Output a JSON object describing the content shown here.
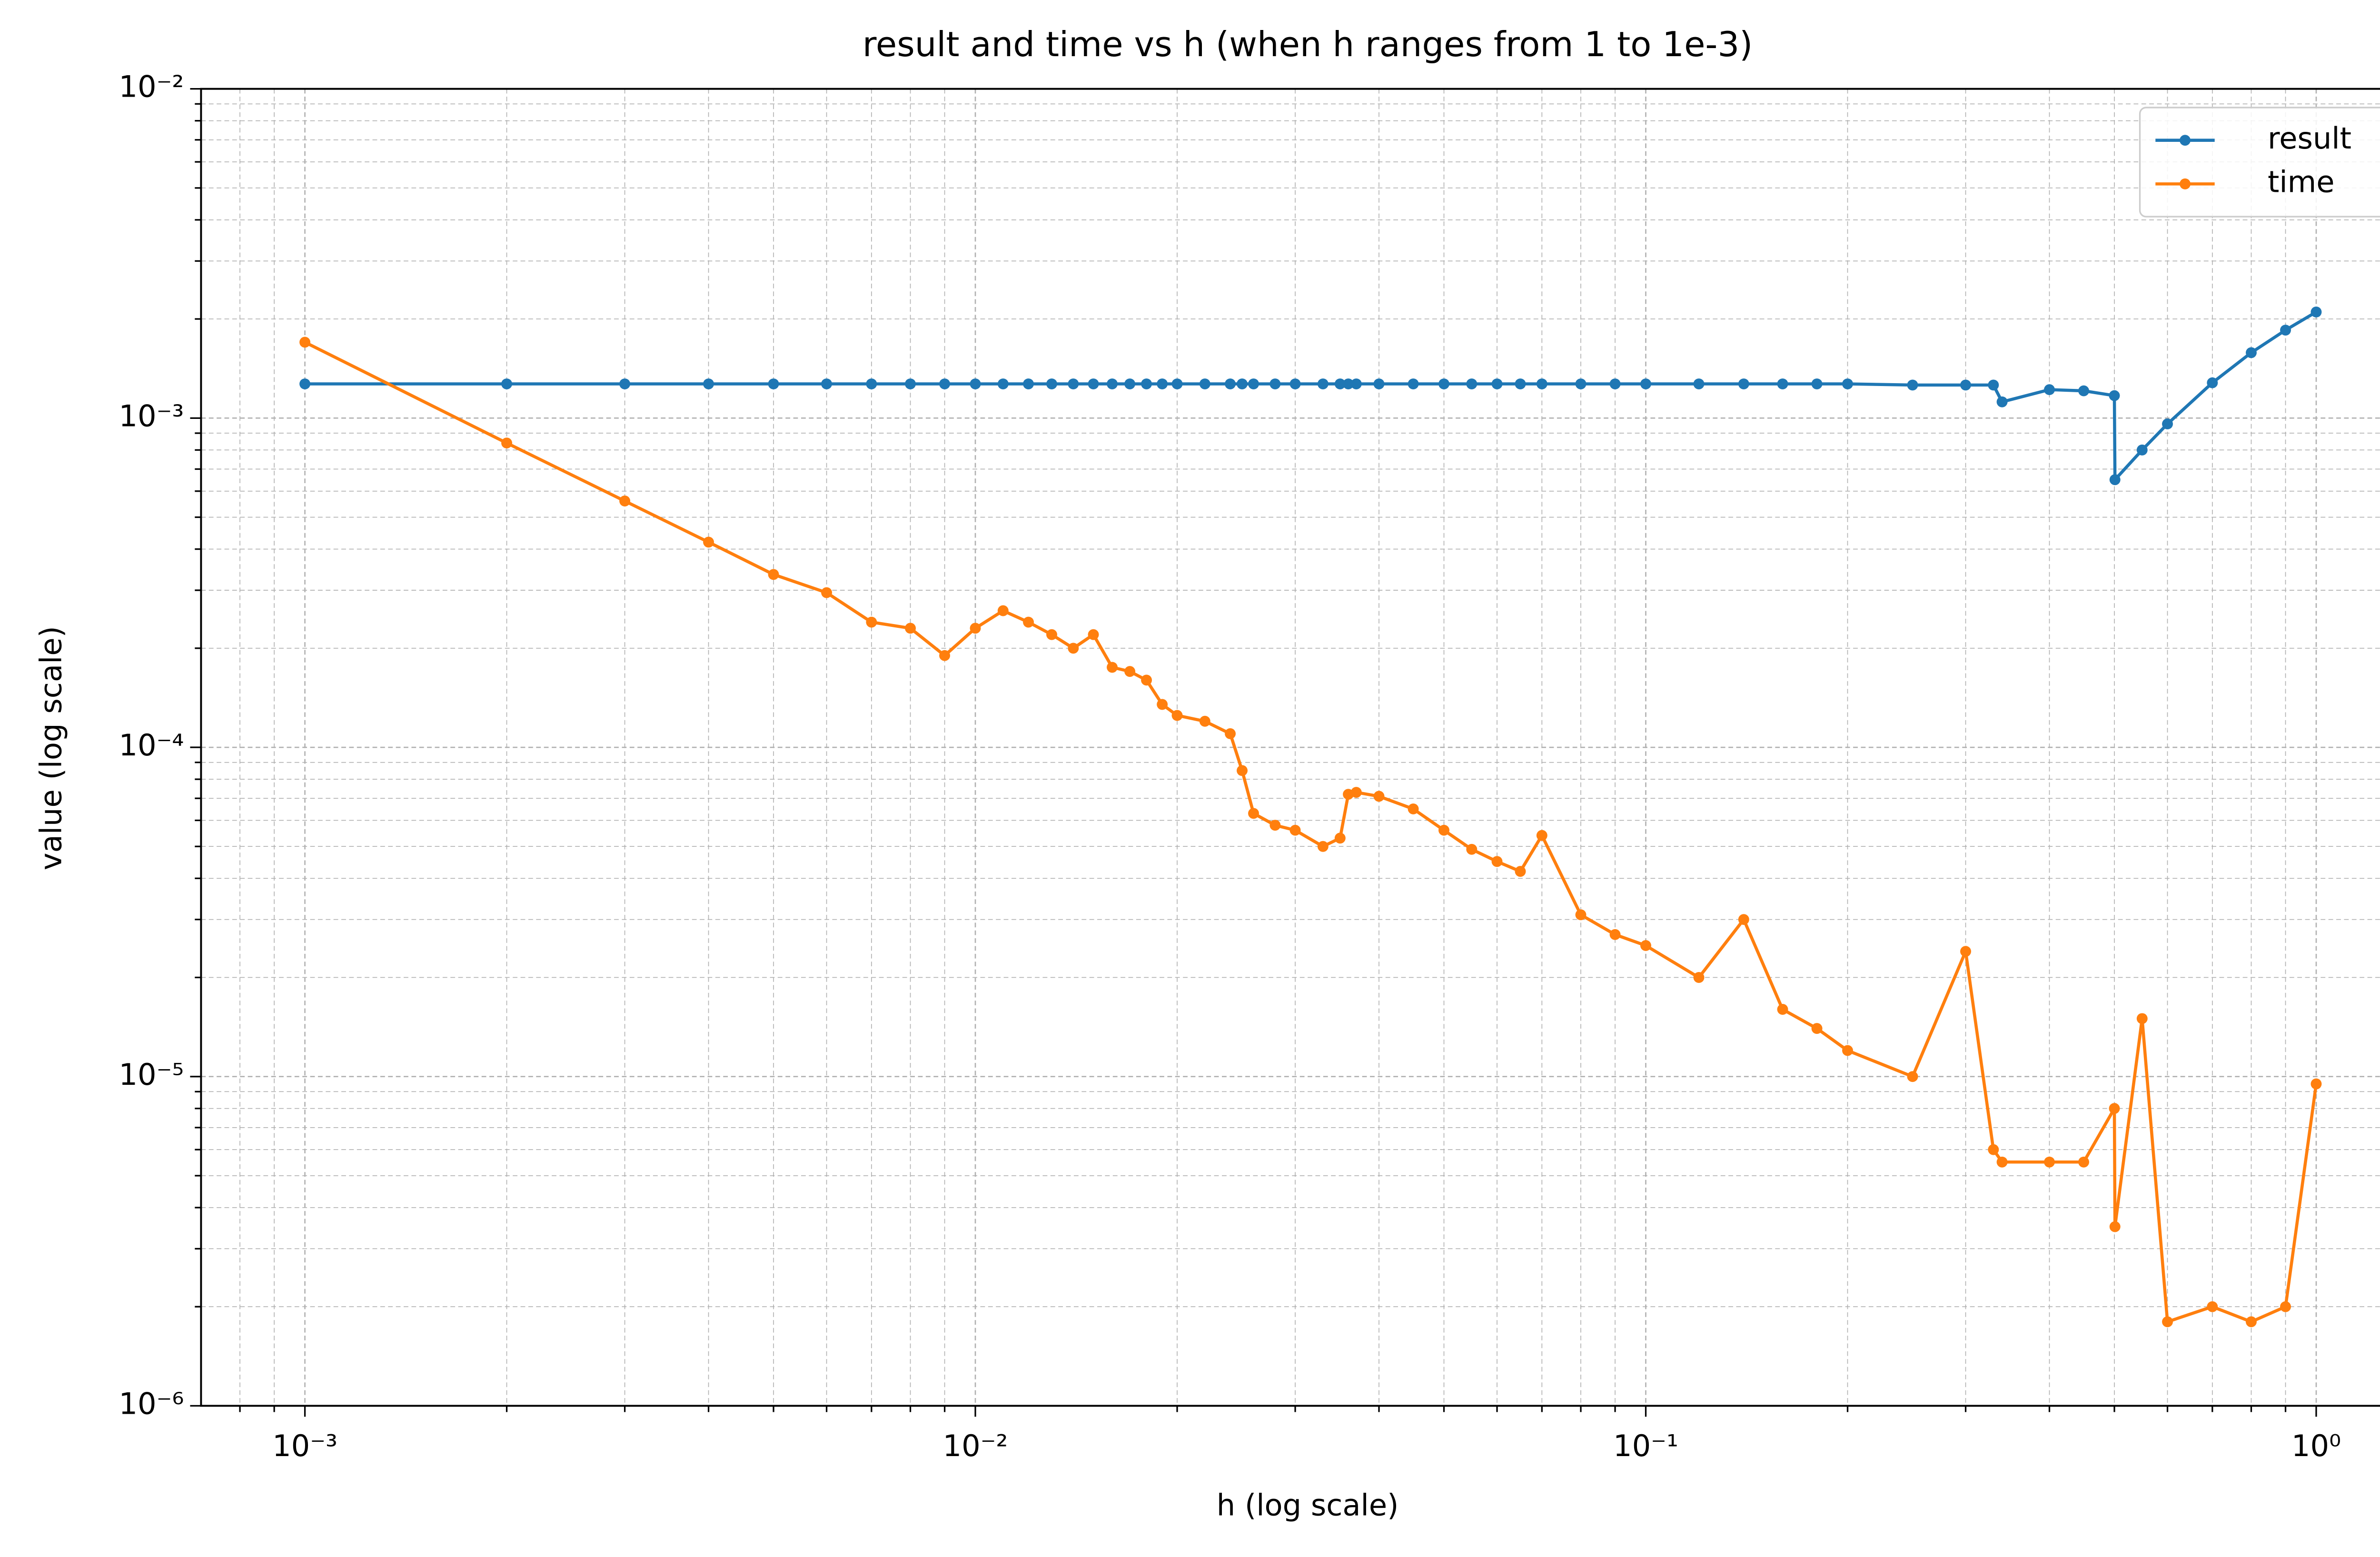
{
  "chart_data": {
    "type": "line",
    "title": "result and time vs h (when h ranges from 1 to 1e-3)",
    "xlabel": "h (log scale)",
    "ylabel": "value (log scale)",
    "xscale": "log",
    "yscale": "log",
    "grid": true,
    "minor_grid": true,
    "legend": "upper right",
    "x": [
      0.001,
      0.002,
      0.003,
      0.004,
      0.005,
      0.006,
      0.007,
      0.008,
      0.009,
      0.01,
      0.011,
      0.012,
      0.013,
      0.014,
      0.015,
      0.016,
      0.017,
      0.018,
      0.019,
      0.02,
      0.022,
      0.024,
      0.025,
      0.026,
      0.028,
      0.03,
      0.033,
      0.035,
      0.036,
      0.037,
      0.04,
      0.045,
      0.05,
      0.055,
      0.06,
      0.065,
      0.07,
      0.08,
      0.09,
      0.1,
      0.12,
      0.14,
      0.16,
      0.18,
      0.2,
      0.25,
      0.3,
      0.33,
      0.34,
      0.4,
      0.45,
      0.5,
      0.501,
      0.55,
      0.6,
      0.7,
      0.8,
      0.9,
      1.0
    ],
    "series": [
      {
        "name": "result",
        "color": "#1f77b4",
        "values": [
          0.00127,
          0.00127,
          0.00127,
          0.00127,
          0.00127,
          0.00127,
          0.00127,
          0.00127,
          0.00127,
          0.00127,
          0.00127,
          0.00127,
          0.00127,
          0.00127,
          0.00127,
          0.00127,
          0.00127,
          0.00127,
          0.00127,
          0.00127,
          0.00127,
          0.00127,
          0.00127,
          0.00127,
          0.00127,
          0.00127,
          0.00127,
          0.00127,
          0.00127,
          0.00127,
          0.00127,
          0.00127,
          0.00127,
          0.00127,
          0.00127,
          0.00127,
          0.00127,
          0.00127,
          0.00127,
          0.00127,
          0.00127,
          0.00127,
          0.00127,
          0.00127,
          0.00127,
          0.00126,
          0.00126,
          0.00126,
          0.00112,
          0.00122,
          0.00121,
          0.00117,
          0.00065,
          0.0008,
          0.00096,
          0.00128,
          0.00158,
          0.00185,
          0.0021
        ]
      },
      {
        "name": "time",
        "color": "#ff7f0e",
        "values": [
          0.0017,
          0.00084,
          0.00056,
          0.00042,
          0.000335,
          0.000295,
          0.00024,
          0.00023,
          0.00019,
          0.00023,
          0.00026,
          0.00024,
          0.00022,
          0.0002,
          0.00022,
          0.000175,
          0.00017,
          0.00016,
          0.000135,
          0.000125,
          0.00012,
          0.00011,
          8.5e-05,
          6.3e-05,
          5.8e-05,
          5.6e-05,
          5e-05,
          5.3e-05,
          7.2e-05,
          7.3e-05,
          7.1e-05,
          6.5e-05,
          5.6e-05,
          4.9e-05,
          4.5e-05,
          4.2e-05,
          5.4e-05,
          3.1e-05,
          2.7e-05,
          2.5e-05,
          2e-05,
          3e-05,
          1.6e-05,
          1.4e-05,
          1.2e-05,
          1e-05,
          2.4e-05,
          6e-06,
          5.5e-06,
          5.5e-06,
          5.5e-06,
          8e-06,
          3.5e-06,
          1.5e-05,
          1.8e-06,
          2e-06,
          1.8e-06,
          2e-06,
          9.5e-06
        ]
      }
    ],
    "xlim": [
      0.0007,
      1.4
    ],
    "xticks": [
      {
        "value": 0.001,
        "label": "10⁻³"
      },
      {
        "value": 0.01,
        "label": "10⁻²"
      },
      {
        "value": 0.1,
        "label": "10⁻¹"
      },
      {
        "value": 1,
        "label": "10⁰"
      }
    ],
    "ylim": [
      1e-06,
      0.01
    ],
    "yticks": [
      {
        "value": 1e-06,
        "label": "10⁻⁶"
      },
      {
        "value": 1e-05,
        "label": "10⁻⁵"
      },
      {
        "value": 0.0001,
        "label": "10⁻⁴"
      },
      {
        "value": 0.001,
        "label": "10⁻³"
      },
      {
        "value": 0.01,
        "label": "10⁻²"
      }
    ]
  }
}
